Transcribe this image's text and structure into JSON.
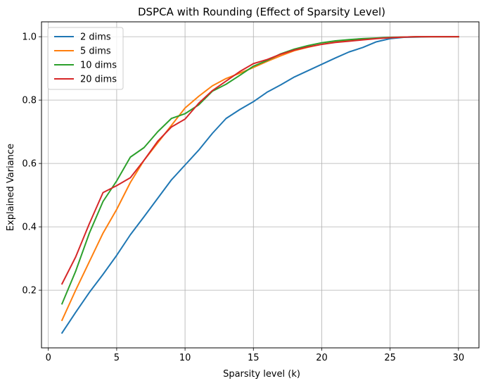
{
  "chart_data": {
    "type": "line",
    "title": "DSPCA with Rounding (Effect of Sparsity Level)",
    "xlabel": "Sparsity level (k)",
    "ylabel": "Explained Variance",
    "xlim": [
      -0.5,
      31.5
    ],
    "ylim": [
      0.018,
      1.047
    ],
    "xticks": [
      0,
      5,
      10,
      15,
      20,
      25,
      30
    ],
    "yticks": [
      0.2,
      0.4,
      0.6,
      0.8,
      1.0
    ],
    "x_tick_labels": [
      "0",
      "5",
      "10",
      "15",
      "20",
      "25",
      "30"
    ],
    "y_tick_labels": [
      "0.2",
      "0.4",
      "0.6",
      "0.8",
      "1.0"
    ],
    "grid": true,
    "legend_position": "upper-left",
    "x": [
      1,
      2,
      3,
      4,
      5,
      6,
      7,
      8,
      9,
      10,
      11,
      12,
      13,
      14,
      15,
      16,
      17,
      18,
      19,
      20,
      21,
      22,
      23,
      24,
      25,
      26,
      27,
      28,
      29,
      30
    ],
    "series": [
      {
        "name": "2 dims",
        "color": "#1f77b4",
        "values": [
          0.065,
          0.13,
          0.193,
          0.25,
          0.31,
          0.375,
          0.432,
          0.49,
          0.548,
          0.595,
          0.642,
          0.695,
          0.742,
          0.77,
          0.795,
          0.825,
          0.848,
          0.873,
          0.893,
          0.913,
          0.933,
          0.952,
          0.966,
          0.984,
          0.994,
          0.998,
          0.999,
          1.0,
          1.0,
          1.0
        ]
      },
      {
        "name": "5 dims",
        "color": "#ff7f0e",
        "values": [
          0.105,
          0.2,
          0.29,
          0.38,
          0.455,
          0.54,
          0.61,
          0.665,
          0.72,
          0.775,
          0.812,
          0.845,
          0.868,
          0.885,
          0.903,
          0.922,
          0.94,
          0.956,
          0.967,
          0.976,
          0.983,
          0.988,
          0.992,
          0.995,
          0.997,
          0.999,
          1.0,
          1.0,
          1.0,
          1.0
        ]
      },
      {
        "name": "10 dims",
        "color": "#2ca02c",
        "values": [
          0.157,
          0.26,
          0.38,
          0.48,
          0.545,
          0.62,
          0.65,
          0.7,
          0.742,
          0.757,
          0.785,
          0.828,
          0.85,
          0.878,
          0.907,
          0.925,
          0.946,
          0.961,
          0.972,
          0.981,
          0.987,
          0.991,
          0.994,
          0.996,
          0.998,
          0.999,
          1.0,
          1.0,
          1.0,
          1.0
        ]
      },
      {
        "name": "20 dims",
        "color": "#d62728",
        "values": [
          0.22,
          0.305,
          0.41,
          0.508,
          0.53,
          0.555,
          0.61,
          0.67,
          0.715,
          0.74,
          0.79,
          0.83,
          0.86,
          0.89,
          0.915,
          0.928,
          0.945,
          0.958,
          0.968,
          0.976,
          0.982,
          0.986,
          0.99,
          0.994,
          0.997,
          0.999,
          1.0,
          1.0,
          1.0,
          1.0
        ]
      }
    ]
  }
}
